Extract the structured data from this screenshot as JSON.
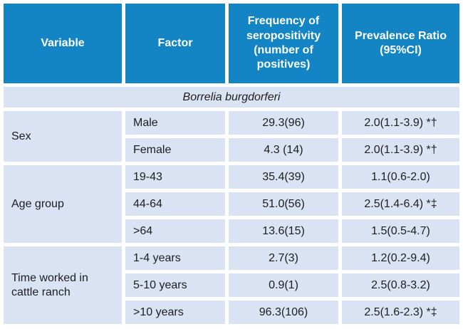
{
  "table": {
    "header": {
      "variable": "Variable",
      "factor": "Factor",
      "frequency": "Frequency of seropositivity (number of positives)",
      "prevalence_ratio": "Prevalence Ratio (95%CI)"
    },
    "section_label": "Borrelia burgdorferi",
    "groups": [
      {
        "variable": "Sex",
        "rows": [
          {
            "factor": "Male",
            "frequency": "29.3(96)",
            "prevalence_ratio": "2.0(1.1-3.9) *†"
          },
          {
            "factor": "Female",
            "frequency": "4.3 (14)",
            "prevalence_ratio": "2.0(1.1-3.9) *†"
          }
        ]
      },
      {
        "variable": "Age group",
        "rows": [
          {
            "factor": "19-43",
            "frequency": "35.4(39)",
            "prevalence_ratio": "1.1(0.6-2.0)"
          },
          {
            "factor": "44-64",
            "frequency": "51.0(56)",
            "prevalence_ratio": "2.5(1.4-6.4) *‡"
          },
          {
            "factor": ">64",
            "frequency": "13.6(15)",
            "prevalence_ratio": "1.5(0.5-4.7)"
          }
        ]
      },
      {
        "variable": "Time worked in cattle ranch",
        "rows": [
          {
            "factor": "1-4 years",
            "frequency": "2.7(3)",
            "prevalence_ratio": "1.2(0.2-9.4)"
          },
          {
            "factor": "5-10 years",
            "frequency": "0.9(1)",
            "prevalence_ratio": "2.5(0.8-3.2)"
          },
          {
            "factor": ">10 years",
            "frequency": "96.3(106)",
            "prevalence_ratio": "2.5(1.6-2.3) *‡"
          }
        ]
      }
    ],
    "colors": {
      "header_bg": "#1385c4",
      "cell_bg": "#d9e3f3",
      "header_text": "#ffffff",
      "body_text": "#1d1d1f"
    }
  }
}
